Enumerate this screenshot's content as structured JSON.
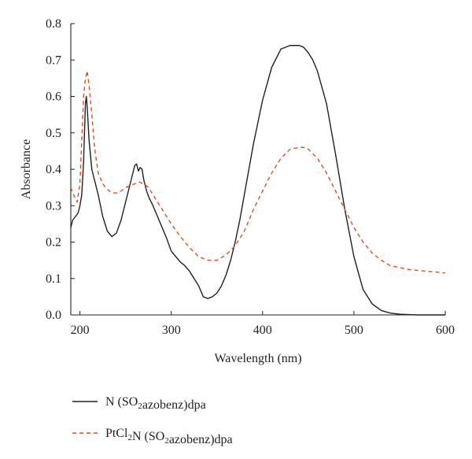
{
  "chart_data": {
    "type": "line",
    "title": "",
    "xlabel": "Wavelength (nm)",
    "ylabel": "Absorbance",
    "xlim": [
      190,
      600
    ],
    "ylim": [
      0.0,
      0.8
    ],
    "x_ticks": [
      200,
      300,
      400,
      500,
      600
    ],
    "x_tick_labels": [
      "200",
      "300",
      "400",
      "500",
      "600"
    ],
    "y_ticks": [
      0.0,
      0.1,
      0.2,
      0.3,
      0.4,
      0.5,
      0.6,
      0.7,
      0.8
    ],
    "y_tick_labels": [
      "0.0",
      "0.1",
      "0.2",
      "0.3",
      "0.4",
      "0.5",
      "0.6",
      "0.7",
      "0.8"
    ],
    "grid": false,
    "legend_position": "bottom",
    "series": [
      {
        "name": "N (SO2azobenz)dpa",
        "legend_parts": [
          {
            "text": "N (SO",
            "sub": false
          },
          {
            "text": "2",
            "sub": true
          },
          {
            "text": "azobenz)dpa",
            "sub": false
          }
        ],
        "color": "#231f20",
        "dash": "solid",
        "x": [
          190,
          192,
          195,
          198,
          200,
          202,
          204,
          205,
          206,
          207,
          208,
          210,
          213,
          216,
          220,
          225,
          230,
          235,
          240,
          245,
          250,
          255,
          258,
          260,
          262,
          264,
          266,
          268,
          270,
          273,
          276,
          280,
          285,
          290,
          295,
          300,
          305,
          310,
          315,
          320,
          325,
          330,
          335,
          340,
          345,
          350,
          355,
          360,
          365,
          370,
          375,
          380,
          390,
          400,
          410,
          420,
          430,
          440,
          445,
          450,
          455,
          460,
          470,
          480,
          490,
          500,
          510,
          520,
          530,
          540,
          550,
          560,
          570,
          580,
          590,
          600
        ],
        "y": [
          0.24,
          0.26,
          0.27,
          0.28,
          0.3,
          0.33,
          0.42,
          0.5,
          0.58,
          0.6,
          0.57,
          0.48,
          0.4,
          0.37,
          0.33,
          0.27,
          0.23,
          0.215,
          0.225,
          0.26,
          0.31,
          0.36,
          0.39,
          0.41,
          0.415,
          0.395,
          0.405,
          0.4,
          0.37,
          0.34,
          0.32,
          0.3,
          0.27,
          0.24,
          0.21,
          0.175,
          0.16,
          0.145,
          0.135,
          0.12,
          0.1,
          0.08,
          0.05,
          0.045,
          0.05,
          0.06,
          0.08,
          0.11,
          0.15,
          0.2,
          0.26,
          0.33,
          0.47,
          0.59,
          0.68,
          0.73,
          0.74,
          0.74,
          0.735,
          0.72,
          0.7,
          0.67,
          0.58,
          0.44,
          0.29,
          0.16,
          0.07,
          0.03,
          0.012,
          0.005,
          0.002,
          0.001,
          0.0,
          0.0,
          0.0,
          0.0
        ]
      },
      {
        "name": "PtCl2N (SO2azobenz)dpa",
        "legend_parts": [
          {
            "text": "PtCl",
            "sub": false
          },
          {
            "text": "2",
            "sub": true
          },
          {
            "text": "N (SO",
            "sub": false
          },
          {
            "text": "2",
            "sub": true
          },
          {
            "text": "azobenz)dpa",
            "sub": false
          }
        ],
        "color": "#e04e1b",
        "dash": "dashed",
        "x": [
          190,
          193,
          197,
          200,
          202,
          204,
          206,
          208,
          210,
          213,
          216,
          220,
          225,
          230,
          235,
          240,
          245,
          250,
          255,
          260,
          265,
          270,
          275,
          280,
          290,
          300,
          310,
          320,
          330,
          340,
          350,
          360,
          370,
          380,
          390,
          400,
          410,
          420,
          430,
          440,
          445,
          450,
          460,
          470,
          480,
          490,
          500,
          510,
          520,
          530,
          540,
          550,
          560,
          570,
          580,
          590,
          600
        ],
        "y": [
          0.35,
          0.33,
          0.31,
          0.36,
          0.48,
          0.6,
          0.65,
          0.67,
          0.63,
          0.55,
          0.46,
          0.39,
          0.36,
          0.345,
          0.335,
          0.335,
          0.34,
          0.35,
          0.355,
          0.36,
          0.365,
          0.36,
          0.35,
          0.33,
          0.29,
          0.25,
          0.215,
          0.185,
          0.16,
          0.15,
          0.15,
          0.165,
          0.19,
          0.23,
          0.29,
          0.34,
          0.39,
          0.43,
          0.455,
          0.46,
          0.46,
          0.455,
          0.43,
          0.39,
          0.34,
          0.29,
          0.24,
          0.2,
          0.17,
          0.15,
          0.135,
          0.13,
          0.125,
          0.122,
          0.12,
          0.118,
          0.115
        ]
      }
    ]
  }
}
